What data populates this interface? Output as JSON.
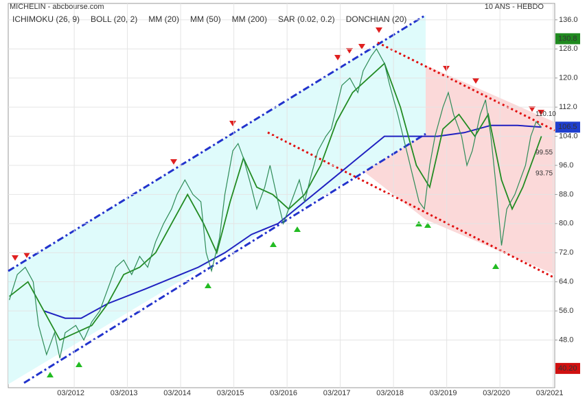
{
  "chart_data": {
    "type": "line",
    "title": "MICHELIN - abcbourse.com",
    "subtitle": "10 ANS - HEBDO",
    "legend": [
      {
        "label": "ICHIMOKU (26, 9)",
        "color": "#1a1ab0"
      },
      {
        "label": "BOLL (20, 2)",
        "color": "#cc66cc"
      },
      {
        "label": "MM (20)",
        "color": "#228b22"
      },
      {
        "label": "MM (50)",
        "color": "#e02020"
      },
      {
        "label": "MM (200)",
        "color": "#2020c0"
      },
      {
        "label": "SAR (0.02, 0.2)",
        "color": "#cc0000"
      },
      {
        "label": "DONCHIAN (20)",
        "color": "#ee6666"
      }
    ],
    "xlim": [
      2010.93,
      2021.2
    ],
    "xticks": [
      {
        "value": 2012.17,
        "label": "03/2012"
      },
      {
        "value": 2013.17,
        "label": "03/2013"
      },
      {
        "value": 2014.17,
        "label": "03/2014"
      },
      {
        "value": 2015.17,
        "label": "03/2015"
      },
      {
        "value": 2016.17,
        "label": "03/2016"
      },
      {
        "value": 2017.17,
        "label": "03/2017"
      },
      {
        "value": 2018.17,
        "label": "03/2018"
      },
      {
        "value": 2019.17,
        "label": "03/2019"
      },
      {
        "value": 2020.17,
        "label": "03/2020"
      },
      {
        "value": 2021.17,
        "label": "03/2021"
      }
    ],
    "ylim": [
      34.9,
      140.5
    ],
    "yticks": [
      {
        "value": 136,
        "label": "136.0"
      },
      {
        "value": 128,
        "label": "128.0"
      },
      {
        "value": 120,
        "label": "120.0"
      },
      {
        "value": 112,
        "label": "112.0"
      },
      {
        "value": 104,
        "label": "104.0"
      },
      {
        "value": 96,
        "label": "96.0"
      },
      {
        "value": 88,
        "label": "88.0"
      },
      {
        "value": 80,
        "label": "80.0"
      },
      {
        "value": 72,
        "label": "72.0"
      },
      {
        "value": 64,
        "label": "64.0"
      },
      {
        "value": 56,
        "label": "56.0"
      },
      {
        "value": 48,
        "label": "48.0"
      }
    ],
    "grid": true,
    "price": {
      "color": "#2e8b57",
      "x": [
        2010.95,
        2011.1,
        2011.25,
        2011.4,
        2011.5,
        2011.65,
        2011.8,
        2011.9,
        2012.0,
        2012.2,
        2012.35,
        2012.5,
        2012.65,
        2012.8,
        2012.95,
        2013.1,
        2013.25,
        2013.4,
        2013.55,
        2013.7,
        2013.85,
        2014.0,
        2014.1,
        2014.25,
        2014.4,
        2014.55,
        2014.65,
        2014.75,
        2014.9,
        2015.0,
        2015.15,
        2015.25,
        2015.35,
        2015.5,
        2015.6,
        2015.75,
        2015.85,
        2016.0,
        2016.1,
        2016.25,
        2016.4,
        2016.5,
        2016.6,
        2016.75,
        2016.9,
        2017.0,
        2017.1,
        2017.2,
        2017.35,
        2017.5,
        2017.6,
        2017.75,
        2017.85,
        2018.0,
        2018.1,
        2018.25,
        2018.35,
        2018.45,
        2018.55,
        2018.65,
        2018.75,
        2018.85,
        2018.95,
        2019.1,
        2019.2,
        2019.3,
        2019.45,
        2019.55,
        2019.65,
        2019.8,
        2019.9,
        2020.0,
        2020.1,
        2020.2,
        2020.3,
        2020.45,
        2020.55,
        2020.65,
        2020.75,
        2020.85,
        2020.95
      ],
      "values": [
        59,
        66,
        68,
        64,
        52,
        44,
        50,
        43,
        50,
        52,
        48,
        53,
        56,
        62,
        68,
        70,
        66,
        71,
        68,
        75,
        80,
        84,
        88,
        92,
        88,
        86,
        72,
        67,
        76,
        88,
        100,
        102,
        98,
        90,
        84,
        90,
        96,
        86,
        80,
        86,
        92,
        86,
        92,
        100,
        104,
        106,
        112,
        118,
        120,
        116,
        122,
        126,
        128,
        124,
        118,
        110,
        104,
        98,
        92,
        86,
        84,
        96,
        104,
        112,
        116,
        110,
        104,
        96,
        100,
        110,
        114,
        104,
        90,
        74,
        84,
        88,
        92,
        96,
        104,
        108,
        106.5
      ]
    },
    "mm20": {
      "color": "#228b22",
      "x": [
        2010.95,
        2011.3,
        2011.6,
        2011.9,
        2012.2,
        2012.5,
        2012.8,
        2013.1,
        2013.4,
        2013.7,
        2014.0,
        2014.3,
        2014.6,
        2014.85,
        2015.1,
        2015.35,
        2015.6,
        2015.9,
        2016.2,
        2016.5,
        2016.8,
        2017.1,
        2017.4,
        2017.7,
        2018.0,
        2018.3,
        2018.6,
        2018.85,
        2019.1,
        2019.4,
        2019.7,
        2019.95,
        2020.2,
        2020.4,
        2020.6,
        2020.8,
        2020.95
      ],
      "values": [
        60,
        64,
        56,
        48,
        50,
        52,
        58,
        66,
        68,
        72,
        80,
        88,
        80,
        72,
        86,
        98,
        90,
        88,
        84,
        88,
        96,
        108,
        116,
        120,
        124,
        112,
        96,
        90,
        106,
        110,
        104,
        110,
        92,
        84,
        90,
        98,
        104
      ]
    },
    "mm200": {
      "color": "#2020c0",
      "x": [
        2011.6,
        2012.0,
        2012.3,
        2012.8,
        2013.5,
        2014.5,
        2015.0,
        2015.5,
        2016.0,
        2016.5,
        2017.0,
        2017.5,
        2018.0,
        2018.5,
        2019.0,
        2019.5,
        2020.0,
        2020.5,
        2020.95
      ],
      "values": [
        56,
        54,
        54,
        58,
        62,
        68,
        72,
        77,
        80,
        86,
        92,
        98,
        104,
        104,
        104,
        105,
        107,
        107,
        106.5
      ]
    },
    "price_labels": [
      {
        "value": 130.8,
        "label": "130.8",
        "color": "#1f8a1f"
      },
      {
        "value": 106.5,
        "label": "106.5",
        "color": "#1f3fcf"
      },
      {
        "value": 40.2,
        "label": "40.20",
        "color": "#d01010"
      }
    ],
    "annotations": [
      {
        "value": 110.1,
        "label": "110.10"
      },
      {
        "value": 99.55,
        "label": "99.55"
      },
      {
        "value": 93.75,
        "label": "93.75"
      }
    ]
  }
}
